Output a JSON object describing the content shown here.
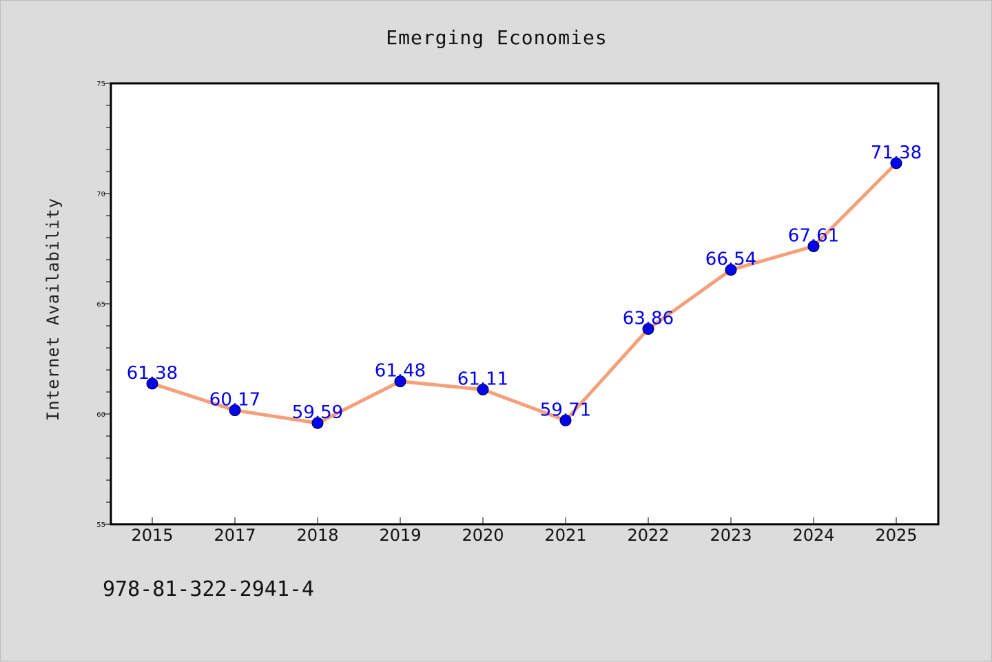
{
  "chart_data": {
    "type": "line",
    "title": "Emerging Economies",
    "xlabel": "",
    "ylabel": "Internet Availability",
    "categories": [
      "2015",
      "2017",
      "2018",
      "2019",
      "2020",
      "2021",
      "2022",
      "2023",
      "2024",
      "2025"
    ],
    "series": [
      {
        "values": [
          61.38,
          60.17,
          59.59,
          61.48,
          61.11,
          59.71,
          63.86,
          66.54,
          67.61,
          71.38
        ],
        "line_color": "#f4a07a",
        "marker_color": "#0000ee"
      }
    ],
    "data_labels": [
      "61.38",
      "60.17",
      "59.59",
      "61.48",
      "61.11",
      "59.71",
      "63.86",
      "66.54",
      "67.61",
      "71.38"
    ],
    "data_label_color": "#0000ee",
    "ylim": [
      55,
      75
    ],
    "yticks": [
      "55",
      "60",
      "65",
      "70",
      "75"
    ],
    "grid": false,
    "legend": "none"
  },
  "footer": {
    "isbn": "978-81-322-2941-4"
  }
}
